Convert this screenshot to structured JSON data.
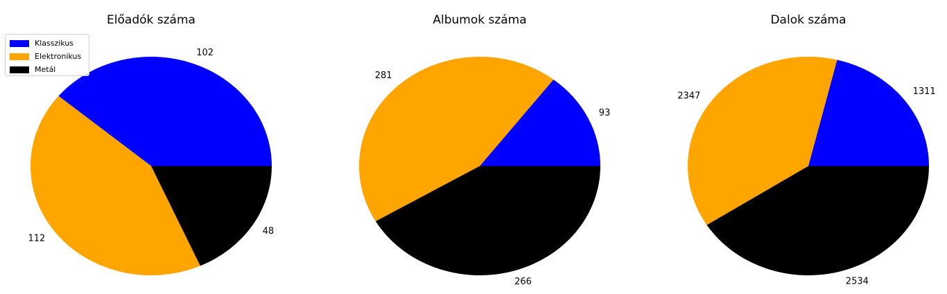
{
  "legend": {
    "items": [
      {
        "label": "Klasszikus",
        "color": "#0000ff"
      },
      {
        "label": "Elektronikus",
        "color": "#ffa500"
      },
      {
        "label": "Metál",
        "color": "#000000"
      }
    ]
  },
  "chart_data": [
    {
      "type": "pie",
      "title": "Előadók száma",
      "categories": [
        "Klasszikus",
        "Elektronikus",
        "Metál"
      ],
      "values": [
        102,
        112,
        48
      ],
      "colors": [
        "#0000ff",
        "#ffa500",
        "#000000"
      ],
      "start_angle": 0,
      "direction": "counterclockwise"
    },
    {
      "type": "pie",
      "title": "Albumok száma",
      "categories": [
        "Klasszikus",
        "Elektronikus",
        "Metál"
      ],
      "values": [
        93,
        281,
        266
      ],
      "colors": [
        "#0000ff",
        "#ffa500",
        "#000000"
      ],
      "start_angle": 0,
      "direction": "counterclockwise"
    },
    {
      "type": "pie",
      "title": "Dalok száma",
      "categories": [
        "Klasszikus",
        "Elektronikus",
        "Metál"
      ],
      "values": [
        1311,
        2347,
        2534
      ],
      "colors": [
        "#0000ff",
        "#ffa500",
        "#000000"
      ],
      "start_angle": 0,
      "direction": "counterclockwise"
    }
  ]
}
